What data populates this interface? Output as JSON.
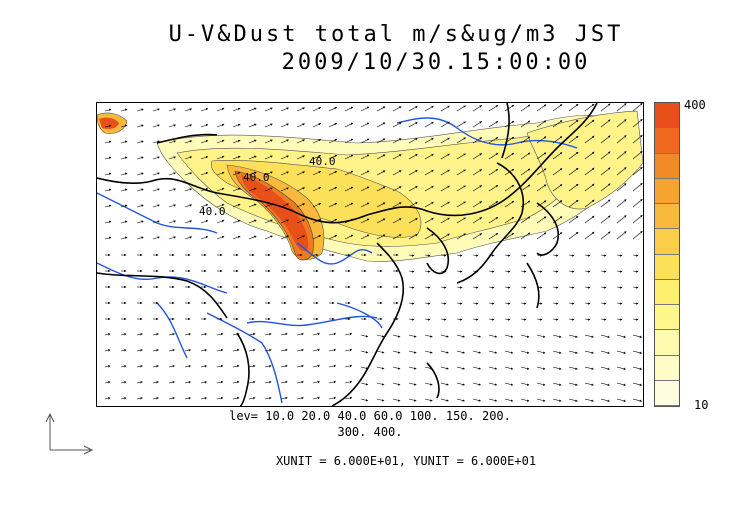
{
  "title_line1": "U-V&Dust total m/s&ug/m3 JST",
  "title_line2": "2009/10/30.15:00:00",
  "colorbar": {
    "max_label": "400",
    "min_label": "10",
    "colors": [
      "#e8501a",
      "#ef6a1e",
      "#f38a28",
      "#f6a332",
      "#f8b93c",
      "#fbcd48",
      "#fde05a",
      "#fef06e",
      "#fff68c",
      "#fffaae",
      "#fffcc8",
      "#fffde0"
    ]
  },
  "levels_line1": "lev= 10.0 20.0 40.0 60.0 100. 150. 200.",
  "levels_line2": "300. 400.",
  "units_text": "XUNIT = 6.000E+01, YUNIT = 6.000E+01",
  "contour_labels": [
    "40.0",
    "40.0",
    "40.0"
  ],
  "map_features": [
    "coastline-east-asia",
    "rivers",
    "wind-vectors",
    "dust-concentration-shading"
  ]
}
